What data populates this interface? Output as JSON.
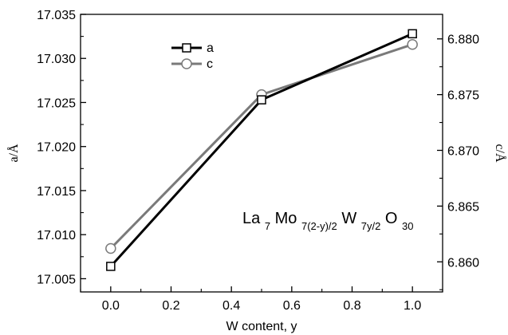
{
  "chart_data": {
    "type": "line",
    "title": "",
    "xlabel": "W content, y",
    "y_left_label": "a/Å",
    "y_right_label": "c/Å",
    "xlim": [
      -0.1,
      1.1
    ],
    "y_left_lim": [
      17.0035,
      17.035
    ],
    "y_right_lim": [
      6.8573,
      6.8822
    ],
    "x_ticks": [
      0.0,
      0.2,
      0.4,
      0.6,
      0.8,
      1.0
    ],
    "x_tick_labels": [
      "0.0",
      "0.2",
      "0.4",
      "0.6",
      "0.8",
      "1.0"
    ],
    "y_left_ticks": [
      17.005,
      17.01,
      17.015,
      17.02,
      17.025,
      17.03,
      17.035
    ],
    "y_left_tick_labels": [
      "17.005",
      "17.010",
      "17.015",
      "17.020",
      "17.025",
      "17.030",
      "17.035"
    ],
    "y_right_ticks": [
      6.86,
      6.865,
      6.87,
      6.875,
      6.88
    ],
    "y_right_tick_labels": [
      "6.860",
      "6.865",
      "6.870",
      "6.875",
      "6.880"
    ],
    "legend_position": "top-left",
    "grid": false,
    "annotation": {
      "base": [
        "La",
        "Mo",
        "W",
        "O"
      ],
      "subs": [
        "7",
        "7(2-y)/2",
        "7y/2",
        "30"
      ]
    },
    "series": [
      {
        "name": "a",
        "axis": "left",
        "marker": "square",
        "color": "#000000",
        "x": [
          0.0,
          0.5,
          1.0
        ],
        "y": [
          17.0064,
          17.0253,
          17.0328
        ]
      },
      {
        "name": "c",
        "axis": "right",
        "marker": "circle",
        "color": "#7a7a7a",
        "x": [
          0.0,
          0.5,
          1.0
        ],
        "y": [
          6.8612,
          6.875,
          6.8795
        ]
      }
    ]
  }
}
